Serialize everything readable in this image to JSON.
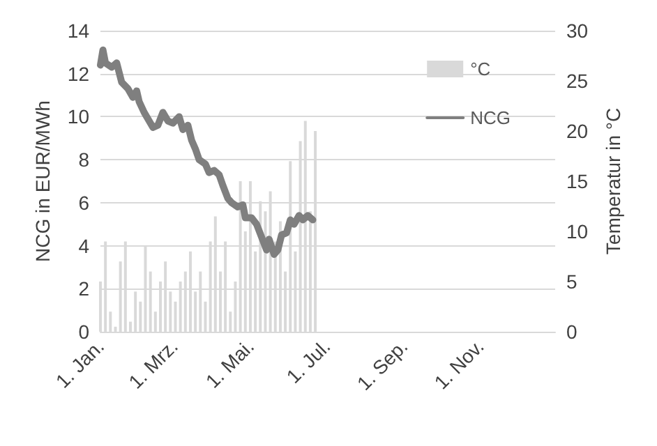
{
  "chart_data": {
    "type": "line",
    "ylabel": "NCG in EUR/MWh",
    "y2label": "Temperatur in °C",
    "xlim": [
      "--01-01",
      "--12-31"
    ],
    "xticks": [
      {
        "value": "--01-01",
        "label": "1. Jan."
      },
      {
        "value": "--03-01",
        "label": "1. Mrz."
      },
      {
        "value": "--05-01",
        "label": "1. Mai."
      },
      {
        "value": "--07-01",
        "label": "1. Jul."
      },
      {
        "value": "--09-01",
        "label": "1. Sep."
      },
      {
        "value": "--11-01",
        "label": "1. Nov."
      }
    ],
    "ylim": [
      0,
      14
    ],
    "yticks": [
      0,
      2,
      4,
      6,
      8,
      10,
      12,
      14
    ],
    "y2lim": [
      0,
      30
    ],
    "y2ticks": [
      0,
      5,
      10,
      15,
      20,
      25,
      30
    ],
    "grid": "y",
    "legend": "top right",
    "marker": "none",
    "line_style": "solid",
    "series": [
      {
        "name": "°C",
        "type": "bar",
        "axis": "y2",
        "color": "#d9d9d9",
        "x": [
          "--01-01",
          "--01-05",
          "--01-09",
          "--01-13",
          "--01-17",
          "--01-21",
          "--01-25",
          "--01-29",
          "--02-02",
          "--02-06",
          "--02-10",
          "--02-14",
          "--02-18",
          "--02-22",
          "--02-26",
          "--03-02",
          "--03-06",
          "--03-10",
          "--03-14",
          "--03-18",
          "--03-22",
          "--03-26",
          "--03-30",
          "--04-03",
          "--04-07",
          "--04-11",
          "--04-15",
          "--04-19",
          "--04-23",
          "--04-27",
          "--05-01",
          "--05-05",
          "--05-09",
          "--05-13",
          "--05-17",
          "--05-21",
          "--05-25",
          "--05-29",
          "--06-02",
          "--06-06",
          "--06-10",
          "--06-14",
          "--06-18",
          "--06-22"
        ],
        "values": [
          5,
          9,
          2,
          0.5,
          7,
          9,
          1,
          4,
          3,
          8.5,
          6,
          2,
          5,
          7,
          4,
          3,
          5,
          6,
          8,
          4,
          6,
          3,
          9,
          11.5,
          6,
          9,
          2,
          5,
          15,
          10,
          15,
          8,
          13,
          12,
          14,
          9,
          11,
          6,
          17,
          8,
          19,
          21,
          12,
          20
        ]
      },
      {
        "name": "NCG",
        "color": "#7f7f7f",
        "x": [
          "--01-01",
          "--01-03",
          "--01-05",
          "--01-10",
          "--01-14",
          "--01-18",
          "--01-23",
          "--01-27",
          "--01-30",
          "--02-01",
          "--02-05",
          "--02-08",
          "--02-12",
          "--02-16",
          "--02-20",
          "--02-24",
          "--02-28",
          "--03-05",
          "--03-08",
          "--03-12",
          "--03-15",
          "--03-18",
          "--03-21",
          "--03-26",
          "--03-29",
          "--04-02",
          "--04-06",
          "--04-09",
          "--04-13",
          "--04-16",
          "--04-21",
          "--04-25",
          "--04-27",
          "--05-02",
          "--05-06",
          "--05-10",
          "--05-14",
          "--05-16",
          "--05-20",
          "--05-23",
          "--05-26",
          "--05-30",
          "--06-02",
          "--06-05",
          "--06-09",
          "--06-12",
          "--06-16",
          "--06-20"
        ],
        "values": [
          12.4,
          13.1,
          12.5,
          12.3,
          12.5,
          11.6,
          11.3,
          10.9,
          11.2,
          10.7,
          10.2,
          9.9,
          9.5,
          9.6,
          10.2,
          9.8,
          9.7,
          10.0,
          9.4,
          9.6,
          8.9,
          8.5,
          8.0,
          7.8,
          7.4,
          7.5,
          7.3,
          6.8,
          6.2,
          6.0,
          5.8,
          5.9,
          5.3,
          5.3,
          5.0,
          4.4,
          3.8,
          4.3,
          3.6,
          3.8,
          4.5,
          4.6,
          5.2,
          5.0,
          5.4,
          5.2,
          5.4,
          5.2
        ]
      }
    ]
  }
}
